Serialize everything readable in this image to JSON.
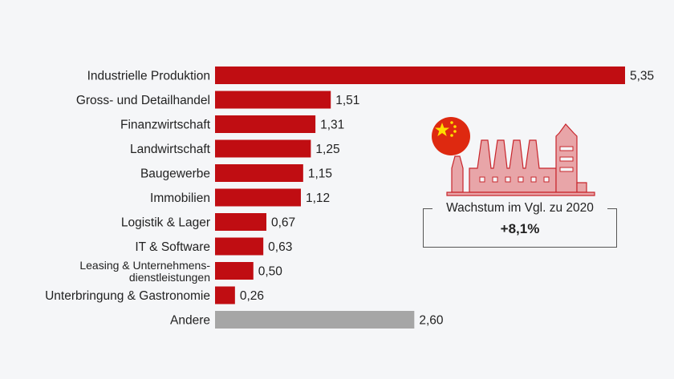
{
  "chart_data": {
    "type": "bar",
    "orientation": "horizontal",
    "categories": [
      "Industrielle Produktion",
      "Gross- und Detailhandel",
      "Finanzwirtschaft",
      "Landwirtschaft",
      "Baugewerbe",
      "Immobilien",
      "Logistik & Lager",
      "IT & Software",
      "Leasing & Unternehmens-\ndienstleistungen",
      "Unterbringung & Gastronomie",
      "Andere"
    ],
    "values": [
      5.35,
      1.51,
      1.31,
      1.25,
      1.15,
      1.12,
      0.67,
      0.63,
      0.5,
      0.26,
      2.6
    ],
    "value_labels": [
      "5,35",
      "1,51",
      "1,31",
      "1,25",
      "1,15",
      "1,12",
      "0,67",
      "0,63",
      "0,50",
      "0,26",
      "2,60"
    ],
    "colors": {
      "bar": "#c00d12",
      "other": "#a6a6a6"
    },
    "xlim": [
      0,
      5.35
    ],
    "grid": false
  },
  "infobox": {
    "flag_icon": "china-flag-icon",
    "illustration": "factory-icon",
    "caption": "Wachstum im Vgl. zu 2020",
    "value": "+8,1%"
  }
}
